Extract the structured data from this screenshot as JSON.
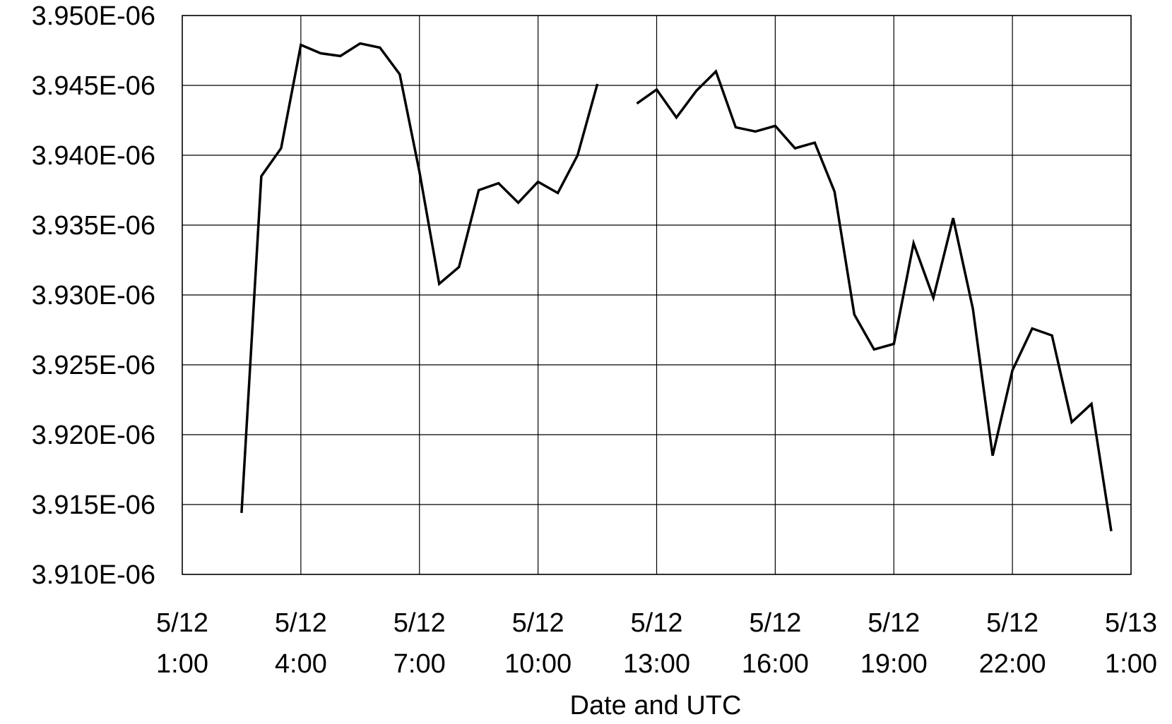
{
  "chart_data": {
    "type": "line",
    "title": "",
    "xlabel": "Date and UTC",
    "ylabel": "",
    "x_tick_labels": [
      [
        "5/12",
        "1:00"
      ],
      [
        "5/12",
        "4:00"
      ],
      [
        "5/12",
        "7:00"
      ],
      [
        "5/12",
        "10:00"
      ],
      [
        "5/12",
        "13:00"
      ],
      [
        "5/12",
        "16:00"
      ],
      [
        "5/12",
        "19:00"
      ],
      [
        "5/12",
        "22:00"
      ],
      [
        "5/13",
        "1:00"
      ]
    ],
    "y_tick_labels": [
      "3.950E-06",
      "3.945E-06",
      "3.940E-06",
      "3.935E-06",
      "3.930E-06",
      "3.925E-06",
      "3.920E-06",
      "3.915E-06",
      "3.910E-06"
    ],
    "xlim": [
      "5/12 1:00",
      "5/13 1:00"
    ],
    "ylim": [
      3.91e-06,
      3.95e-06
    ],
    "grid": true,
    "legend": "none",
    "series": [
      {
        "segments": [
          [
            {
              "x": "5/12 2:30",
              "y": 3.9144e-06
            },
            {
              "x": "5/12 3:00",
              "y": 3.9385e-06
            },
            {
              "x": "5/12 3:30",
              "y": 3.9405e-06
            },
            {
              "x": "5/12 4:00",
              "y": 3.9479e-06
            },
            {
              "x": "5/12 4:30",
              "y": 3.9473e-06
            },
            {
              "x": "5/12 5:00",
              "y": 3.9471e-06
            },
            {
              "x": "5/12 5:30",
              "y": 3.948e-06
            },
            {
              "x": "5/12 6:00",
              "y": 3.9477e-06
            },
            {
              "x": "5/12 6:30",
              "y": 3.9458e-06
            },
            {
              "x": "5/12 7:00",
              "y": 3.9388e-06
            },
            {
              "x": "5/12 7:30",
              "y": 3.9308e-06
            },
            {
              "x": "5/12 8:00",
              "y": 3.932e-06
            },
            {
              "x": "5/12 8:30",
              "y": 3.9375e-06
            },
            {
              "x": "5/12 9:00",
              "y": 3.938e-06
            },
            {
              "x": "5/12 9:30",
              "y": 3.9366e-06
            },
            {
              "x": "5/12 10:00",
              "y": 3.9381e-06
            },
            {
              "x": "5/12 10:30",
              "y": 3.9373e-06
            },
            {
              "x": "5/12 11:00",
              "y": 3.94e-06
            },
            {
              "x": "5/12 11:30",
              "y": 3.9451e-06
            }
          ],
          [
            {
              "x": "5/12 12:30",
              "y": 3.9437e-06
            },
            {
              "x": "5/12 13:00",
              "y": 3.9447e-06
            },
            {
              "x": "5/12 13:30",
              "y": 3.9427e-06
            },
            {
              "x": "5/12 14:00",
              "y": 3.9446e-06
            },
            {
              "x": "5/12 14:30",
              "y": 3.946e-06
            },
            {
              "x": "5/12 15:00",
              "y": 3.942e-06
            },
            {
              "x": "5/12 15:30",
              "y": 3.9417e-06
            },
            {
              "x": "5/12 16:00",
              "y": 3.9421e-06
            },
            {
              "x": "5/12 16:30",
              "y": 3.9405e-06
            },
            {
              "x": "5/12 17:00",
              "y": 3.9409e-06
            },
            {
              "x": "5/12 17:30",
              "y": 3.9374e-06
            },
            {
              "x": "5/12 18:00",
              "y": 3.9286e-06
            },
            {
              "x": "5/12 18:30",
              "y": 3.9261e-06
            },
            {
              "x": "5/12 19:00",
              "y": 3.9265e-06
            },
            {
              "x": "5/12 19:30",
              "y": 3.9337e-06
            },
            {
              "x": "5/12 20:00",
              "y": 3.9298e-06
            },
            {
              "x": "5/12 20:30",
              "y": 3.9355e-06
            },
            {
              "x": "5/12 21:00",
              "y": 3.929e-06
            },
            {
              "x": "5/12 21:30",
              "y": 3.9185e-06
            },
            {
              "x": "5/12 22:00",
              "y": 3.9246e-06
            },
            {
              "x": "5/12 22:30",
              "y": 3.9276e-06
            },
            {
              "x": "5/12 23:00",
              "y": 3.9271e-06
            },
            {
              "x": "5/12 23:30",
              "y": 3.9209e-06
            },
            {
              "x": "5/13 0:00",
              "y": 3.9222e-06
            },
            {
              "x": "5/13 0:30",
              "y": 3.9131e-06
            }
          ]
        ]
      }
    ],
    "colors": {
      "line": "#000000",
      "grid": "#000000",
      "background": "#ffffff"
    }
  }
}
